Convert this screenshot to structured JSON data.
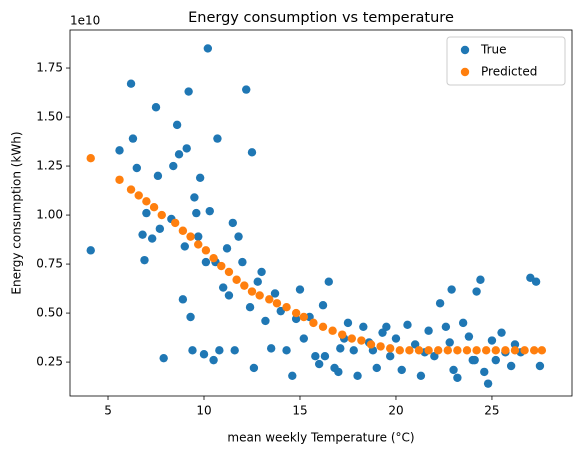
{
  "chart_data": {
    "type": "scatter",
    "title": "Energy consumption vs temperature",
    "xlabel": "mean weekly Temperature (°C)",
    "ylabel": "Energy consumption (kWh)",
    "y_offset_label": "1e10",
    "xlim": [
      3.02,
      29.17
    ],
    "ylim": [
      0.077,
      1.944
    ],
    "xticks": [
      5,
      10,
      15,
      20,
      25
    ],
    "yticks": [
      0.25,
      {
        "value": 0.5,
        "label": "0.50"
      },
      0.75,
      {
        "value": 1,
        "label": "1.00"
      },
      1.25,
      {
        "value": 1.5,
        "label": "1.50"
      },
      1.75
    ],
    "legend": "upper right",
    "series": [
      {
        "name": "True",
        "color": "#1f77b4",
        "x": [
          4.1,
          5.6,
          6.2,
          6.3,
          6.5,
          6.8,
          6.9,
          7,
          7.3,
          7.5,
          7.6,
          7.7,
          7.9,
          8.4,
          8.6,
          8.7,
          8.9,
          9,
          9.1,
          9.2,
          9.3,
          9.4,
          9.5,
          9.6,
          9.8,
          10,
          10.2,
          10.3,
          10.5,
          10.6,
          10.7,
          10.8,
          11,
          11.3,
          11.6,
          11.8,
          12,
          12.2,
          12.5,
          12.6,
          12.8,
          13,
          13.2,
          13.5,
          14,
          14.3,
          14.6,
          15,
          15.2,
          15.5,
          15.8,
          16,
          16.2,
          16.5,
          16.8,
          17,
          17.3,
          17.5,
          17.8,
          18,
          18.3,
          18.6,
          19,
          19.3,
          19.7,
          20,
          20.3,
          20.6,
          21,
          21.3,
          21.7,
          22,
          22.3,
          22.6,
          22.9,
          23,
          23.2,
          23.5,
          23.8,
          24,
          24.2,
          24.4,
          24.6,
          24.8,
          25,
          25.2,
          25.5,
          26,
          26.5,
          27,
          27.3,
          27.5,
          11.5,
          10.1,
          12.4,
          13.7,
          16.3,
          18.8,
          21.5,
          25.7,
          8.3,
          9.7,
          11.2,
          14.8,
          17.1,
          19.5,
          22.8,
          24.1,
          26.2
        ],
        "values": [
          0.82,
          1.33,
          1.67,
          1.39,
          1.24,
          0.9,
          0.77,
          1.01,
          0.88,
          1.55,
          1.2,
          0.93,
          0.27,
          1.25,
          1.46,
          1.31,
          0.57,
          0.84,
          1.34,
          1.63,
          0.48,
          0.31,
          1.09,
          1.01,
          1.19,
          0.29,
          1.85,
          1.02,
          0.26,
          0.76,
          1.39,
          0.31,
          0.63,
          0.59,
          0.31,
          0.89,
          0.76,
          1.64,
          1.32,
          0.22,
          0.66,
          0.71,
          0.46,
          0.32,
          0.51,
          0.31,
          0.18,
          0.62,
          0.37,
          0.48,
          0.28,
          0.24,
          0.54,
          0.66,
          0.22,
          0.2,
          0.37,
          0.45,
          0.31,
          0.18,
          0.43,
          0.35,
          0.22,
          0.4,
          0.28,
          0.37,
          0.21,
          0.44,
          0.34,
          0.18,
          0.41,
          0.28,
          0.55,
          0.43,
          0.62,
          0.21,
          0.17,
          0.45,
          0.38,
          0.26,
          0.61,
          0.67,
          0.2,
          0.14,
          0.36,
          0.26,
          0.4,
          0.23,
          0.3,
          0.68,
          0.66,
          0.23,
          0.96,
          0.76,
          0.53,
          0.6,
          0.28,
          0.31,
          0.3,
          0.3,
          0.98,
          0.89,
          0.83,
          0.47,
          0.32,
          0.43,
          0.35,
          0.26,
          0.34
        ]
      },
      {
        "name": "Predicted",
        "color": "#ff7f0e",
        "x": [
          4.1,
          5.6,
          6.2,
          6.6,
          7.0,
          7.4,
          7.8,
          8.5,
          8.9,
          9.3,
          9.7,
          10.1,
          10.5,
          10.9,
          11.3,
          11.7,
          12.1,
          12.5,
          12.9,
          13.4,
          13.8,
          14.3,
          14.8,
          15.2,
          15.7,
          16.2,
          16.7,
          17.2,
          17.7,
          18.2,
          18.7,
          19.2,
          19.7,
          20.2,
          20.7,
          21.2,
          21.7,
          22.2,
          22.7,
          23.2,
          23.7,
          24.2,
          24.7,
          25.2,
          25.7,
          26.2,
          26.7,
          27.2,
          27.6
        ],
        "values": [
          1.29,
          1.18,
          1.13,
          1.1,
          1.07,
          1.04,
          1.0,
          0.96,
          0.92,
          0.89,
          0.85,
          0.82,
          0.78,
          0.74,
          0.71,
          0.67,
          0.64,
          0.61,
          0.59,
          0.57,
          0.55,
          0.53,
          0.5,
          0.48,
          0.45,
          0.43,
          0.41,
          0.39,
          0.37,
          0.36,
          0.34,
          0.33,
          0.32,
          0.31,
          0.31,
          0.31,
          0.31,
          0.31,
          0.31,
          0.31,
          0.31,
          0.31,
          0.31,
          0.31,
          0.31,
          0.31,
          0.31,
          0.31,
          0.31
        ]
      }
    ]
  }
}
